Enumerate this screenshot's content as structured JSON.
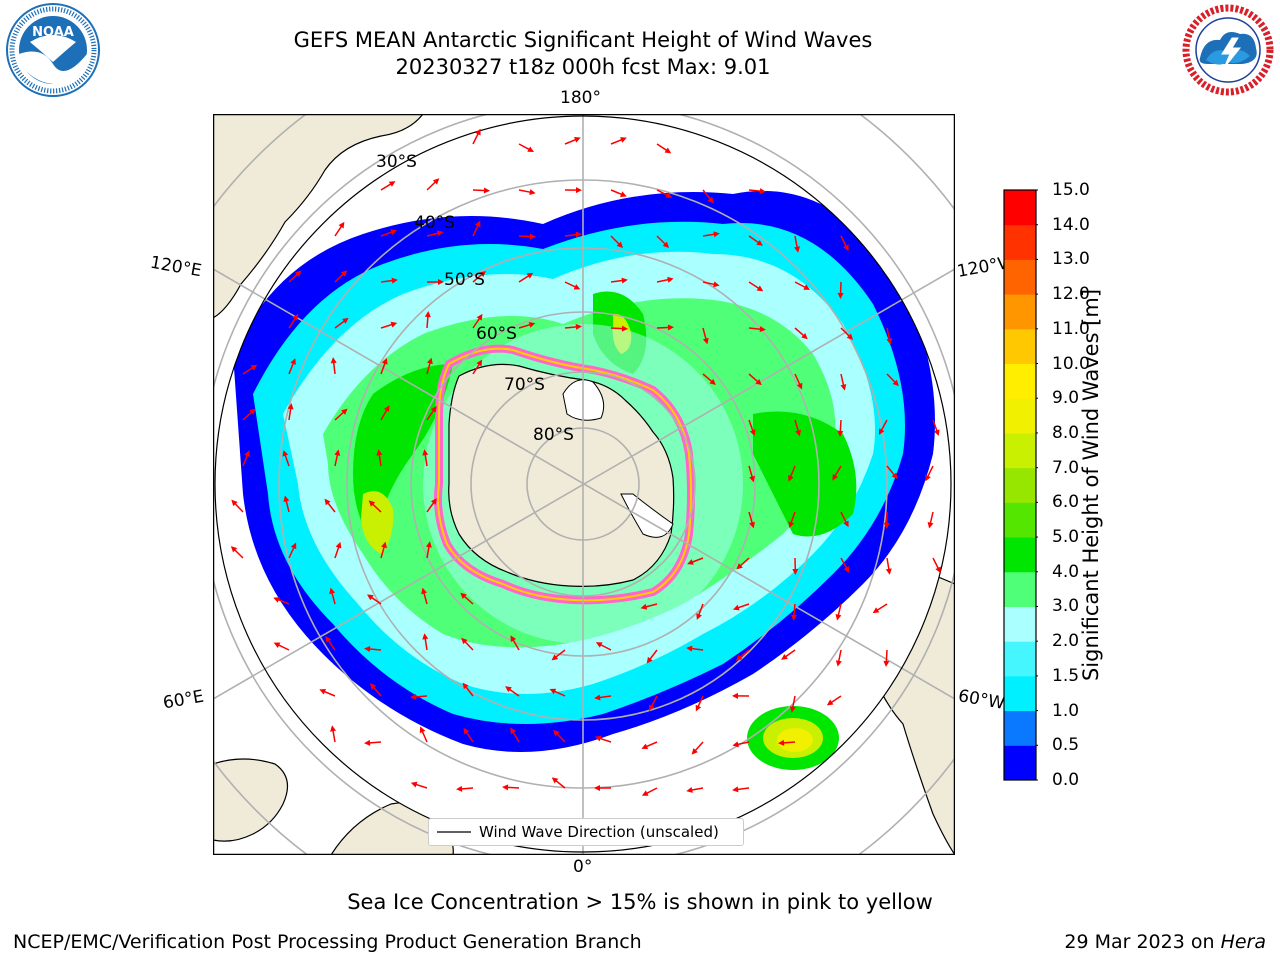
{
  "header": {
    "title_line1": "GEFS MEAN Antarctic Significant Height of Wind Waves",
    "title_line2": "20230327 t18z 000h fcst   Max: 9.01"
  },
  "logos": {
    "noaa": {
      "name": "noaa-logo",
      "text": "NOAA",
      "ring_text": "NATIONAL OCEANIC AND ATMOSPHERIC ADMINISTRATION · U.S. DEPARTMENT OF COMMERCE",
      "color": "#1d6fb8"
    },
    "nws": {
      "name": "nws-logo",
      "ring_text": "NATIONAL WEATHER SERVICE",
      "color": "#d8202a"
    }
  },
  "map": {
    "projection": "south-polar-stereographic",
    "longitude_labels": {
      "top": "180°",
      "bottom": "0°",
      "upper_left": "120°E",
      "upper_right": "120°W",
      "lower_left": "60°E",
      "lower_right": "60°W"
    },
    "latitude_labels": [
      "30°S",
      "40°S",
      "50°S",
      "60°S",
      "70°S",
      "80°S"
    ],
    "legend_label": "Wind Wave Direction (unscaled)",
    "arrow_color": "#ff0000",
    "sea_ice_colors": [
      "#ff66cc",
      "#ffcc00"
    ],
    "land_color": "#efebd8"
  },
  "colorbar": {
    "label": "Significant Height of Wind Waves [m]",
    "ticks": [
      "0.0",
      "0.5",
      "1.0",
      "1.5",
      "2.0",
      "3.0",
      "4.0",
      "5.0",
      "6.0",
      "7.0",
      "8.0",
      "9.0",
      "10.0",
      "11.0",
      "12.0",
      "13.0",
      "14.0",
      "15.0"
    ],
    "colors": [
      "#0000ff",
      "#0a78ff",
      "#00f0ff",
      "#46f6ff",
      "#aaffff",
      "#50ff78",
      "#00e600",
      "#55e600",
      "#96e600",
      "#c8f000",
      "#f0f000",
      "#ffee00",
      "#ffc800",
      "#ff9600",
      "#ff6400",
      "#ff3200",
      "#ff0000"
    ]
  },
  "footer": {
    "note": "Sea Ice Concentration > 15% is shown in pink to yellow",
    "credit": "NCEP/EMC/Verification Post Processing Product Generation Branch",
    "date_text": "29 Mar 2023 on ",
    "host": "Hera"
  }
}
